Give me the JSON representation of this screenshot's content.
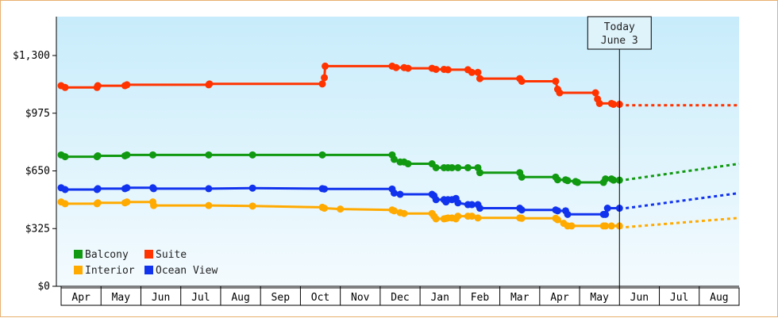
{
  "chart_data": {
    "type": "line",
    "title": "",
    "xlabel": "",
    "ylabel": "",
    "ylim": [
      0,
      1300
    ],
    "y_ticks": [
      {
        "value": 0,
        "label": "$0"
      },
      {
        "value": 325,
        "label": "$325"
      },
      {
        "value": 650,
        "label": "$650"
      },
      {
        "value": 975,
        "label": "$975"
      },
      {
        "value": 1300,
        "label": "$1,300"
      }
    ],
    "x_range": [
      0,
      17
    ],
    "months": [
      "Apr",
      "May",
      "Jun",
      "Jul",
      "Aug",
      "Sep",
      "Oct",
      "Nov",
      "Dec",
      "Jan",
      "Feb",
      "Mar",
      "Apr",
      "May",
      "Jun",
      "Jul",
      "Aug"
    ],
    "today": {
      "x": 14.0,
      "line1": "Today",
      "line2": "June 3"
    },
    "legend": {
      "placement": "bottom-left"
    },
    "series": [
      {
        "name": "Suite",
        "color": "#ff3300",
        "points": [
          [
            0,
            1130
          ],
          [
            0.1,
            1120
          ],
          [
            0.9,
            1120
          ],
          [
            0.92,
            1130
          ],
          [
            1.6,
            1130
          ],
          [
            1.65,
            1135
          ],
          [
            3.7,
            1135
          ],
          [
            3.72,
            1140
          ],
          [
            6.55,
            1140
          ],
          [
            6.6,
            1175
          ],
          [
            6.62,
            1240
          ],
          [
            8.3,
            1240
          ],
          [
            8.4,
            1232
          ],
          [
            8.6,
            1232
          ],
          [
            8.7,
            1228
          ],
          [
            9.3,
            1228
          ],
          [
            9.4,
            1222
          ],
          [
            9.6,
            1222
          ],
          [
            9.7,
            1220
          ],
          [
            10.2,
            1220
          ],
          [
            10.3,
            1205
          ],
          [
            10.45,
            1205
          ],
          [
            10.5,
            1170
          ],
          [
            11.5,
            1170
          ],
          [
            11.55,
            1155
          ],
          [
            12.4,
            1155
          ],
          [
            12.45,
            1110
          ],
          [
            12.5,
            1090
          ],
          [
            13.4,
            1090
          ],
          [
            13.45,
            1055
          ],
          [
            13.5,
            1030
          ],
          [
            13.8,
            1030
          ],
          [
            13.85,
            1025
          ],
          [
            14.0,
            1025
          ]
        ],
        "projection": [
          [
            14.0,
            1020
          ],
          [
            17.0,
            1020
          ]
        ]
      },
      {
        "name": "Balcony",
        "color": "#119911",
        "points": [
          [
            0,
            740
          ],
          [
            0.1,
            730
          ],
          [
            0.9,
            730
          ],
          [
            0.92,
            735
          ],
          [
            1.6,
            735
          ],
          [
            1.65,
            740
          ],
          [
            2.3,
            740
          ],
          [
            3.7,
            740
          ],
          [
            4.8,
            740
          ],
          [
            6.55,
            740
          ],
          [
            8.3,
            740
          ],
          [
            8.35,
            715
          ],
          [
            8.5,
            700
          ],
          [
            8.6,
            700
          ],
          [
            8.7,
            690
          ],
          [
            9.3,
            690
          ],
          [
            9.4,
            668
          ],
          [
            9.6,
            668
          ],
          [
            9.7,
            668
          ],
          [
            9.8,
            668
          ],
          [
            9.95,
            668
          ],
          [
            10.2,
            668
          ],
          [
            10.45,
            668
          ],
          [
            10.5,
            640
          ],
          [
            11.5,
            640
          ],
          [
            11.55,
            615
          ],
          [
            12.4,
            615
          ],
          [
            12.45,
            600
          ],
          [
            12.65,
            600
          ],
          [
            12.7,
            595
          ],
          [
            12.9,
            590
          ],
          [
            12.95,
            585
          ],
          [
            13.6,
            585
          ],
          [
            13.65,
            605
          ],
          [
            13.8,
            605
          ],
          [
            13.85,
            598
          ],
          [
            14.0,
            598
          ]
        ],
        "projection": [
          [
            14.0,
            595
          ],
          [
            17.0,
            690
          ]
        ]
      },
      {
        "name": "Ocean View",
        "color": "#1133ee",
        "points": [
          [
            0,
            555
          ],
          [
            0.1,
            545
          ],
          [
            0.9,
            545
          ],
          [
            0.92,
            550
          ],
          [
            1.6,
            550
          ],
          [
            1.65,
            555
          ],
          [
            2.3,
            555
          ],
          [
            2.32,
            550
          ],
          [
            3.7,
            550
          ],
          [
            4.8,
            553
          ],
          [
            6.55,
            550
          ],
          [
            6.6,
            548
          ],
          [
            8.3,
            548
          ],
          [
            8.35,
            525
          ],
          [
            8.5,
            518
          ],
          [
            9.3,
            518
          ],
          [
            9.35,
            510
          ],
          [
            9.4,
            488
          ],
          [
            9.6,
            488
          ],
          [
            9.65,
            475
          ],
          [
            9.7,
            488
          ],
          [
            9.8,
            488
          ],
          [
            9.9,
            495
          ],
          [
            9.95,
            470
          ],
          [
            10.2,
            460
          ],
          [
            10.3,
            460
          ],
          [
            10.45,
            460
          ],
          [
            10.5,
            440
          ],
          [
            11.5,
            440
          ],
          [
            11.55,
            430
          ],
          [
            12.4,
            430
          ],
          [
            12.45,
            425
          ],
          [
            12.65,
            425
          ],
          [
            12.7,
            405
          ],
          [
            13.6,
            405
          ],
          [
            13.65,
            405
          ],
          [
            13.7,
            440
          ],
          [
            14.0,
            440
          ]
        ],
        "projection": [
          [
            14.0,
            435
          ],
          [
            17.0,
            525
          ]
        ]
      },
      {
        "name": "Interior",
        "color": "#ffaa00",
        "points": [
          [
            0,
            475
          ],
          [
            0.1,
            465
          ],
          [
            0.9,
            465
          ],
          [
            0.92,
            470
          ],
          [
            1.6,
            470
          ],
          [
            1.65,
            475
          ],
          [
            2.3,
            475
          ],
          [
            2.32,
            455
          ],
          [
            3.7,
            455
          ],
          [
            4.8,
            452
          ],
          [
            6.55,
            445
          ],
          [
            6.6,
            440
          ],
          [
            7.0,
            435
          ],
          [
            8.3,
            430
          ],
          [
            8.35,
            425
          ],
          [
            8.5,
            415
          ],
          [
            8.6,
            410
          ],
          [
            9.3,
            410
          ],
          [
            9.35,
            395
          ],
          [
            9.4,
            380
          ],
          [
            9.6,
            380
          ],
          [
            9.65,
            382
          ],
          [
            9.7,
            385
          ],
          [
            9.8,
            385
          ],
          [
            9.9,
            380
          ],
          [
            9.95,
            395
          ],
          [
            10.2,
            395
          ],
          [
            10.3,
            395
          ],
          [
            10.45,
            385
          ],
          [
            11.5,
            385
          ],
          [
            11.55,
            383
          ],
          [
            12.4,
            383
          ],
          [
            12.45,
            375
          ],
          [
            12.6,
            355
          ],
          [
            12.7,
            340
          ],
          [
            12.8,
            340
          ],
          [
            13.6,
            340
          ],
          [
            13.65,
            340
          ],
          [
            13.8,
            340
          ],
          [
            14.0,
            340
          ]
        ],
        "projection": [
          [
            14.0,
            330
          ],
          [
            17.0,
            385
          ]
        ]
      }
    ]
  }
}
